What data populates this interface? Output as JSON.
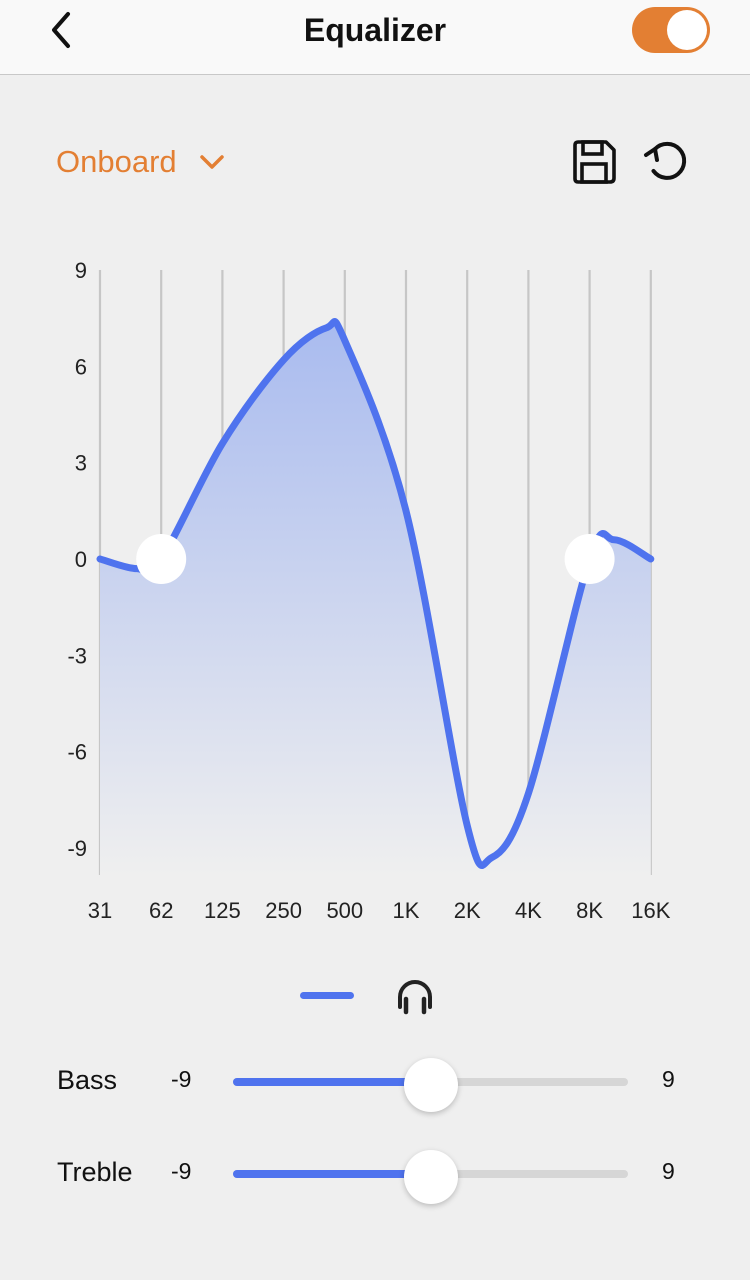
{
  "header": {
    "title": "Equalizer",
    "enabled": true
  },
  "preset": {
    "selected": "Onboard"
  },
  "colors": {
    "accent": "#e37f33",
    "curve": "#4f73ee",
    "fill_top": "#a9bbef",
    "fill_bottom": "#efefef",
    "grid": "#c6c6c6"
  },
  "icons": [
    "back-chevron-icon",
    "save-icon",
    "reset-icon",
    "chevron-down-icon",
    "headphones-icon"
  ],
  "chart_data": {
    "type": "line",
    "y_ticks": [
      "9",
      "6",
      "3",
      "0",
      "-3",
      "-6",
      "-9"
    ],
    "ylim": [
      -9,
      9
    ],
    "categories": [
      "31",
      "62",
      "125",
      "250",
      "500",
      "1K",
      "2K",
      "4K",
      "8K",
      "16K"
    ],
    "curve": {
      "x": [
        0,
        0.6,
        1,
        2,
        3,
        3.7,
        4,
        5,
        6,
        6.4,
        7,
        8,
        8.4,
        9
      ],
      "y": [
        0,
        -0.3,
        0,
        3.6,
        6.2,
        7.2,
        6.8,
        1.5,
        -8.3,
        -9.3,
        -7.3,
        0,
        0.6,
        0
      ]
    },
    "handles": [
      {
        "band": "62",
        "value": 0
      },
      {
        "band": "8K",
        "value": 0
      }
    ]
  },
  "sliders": [
    {
      "name": "Bass",
      "min": "-9",
      "max": "9",
      "value": 0
    },
    {
      "name": "Treble",
      "min": "-9",
      "max": "9",
      "value": 0
    }
  ]
}
